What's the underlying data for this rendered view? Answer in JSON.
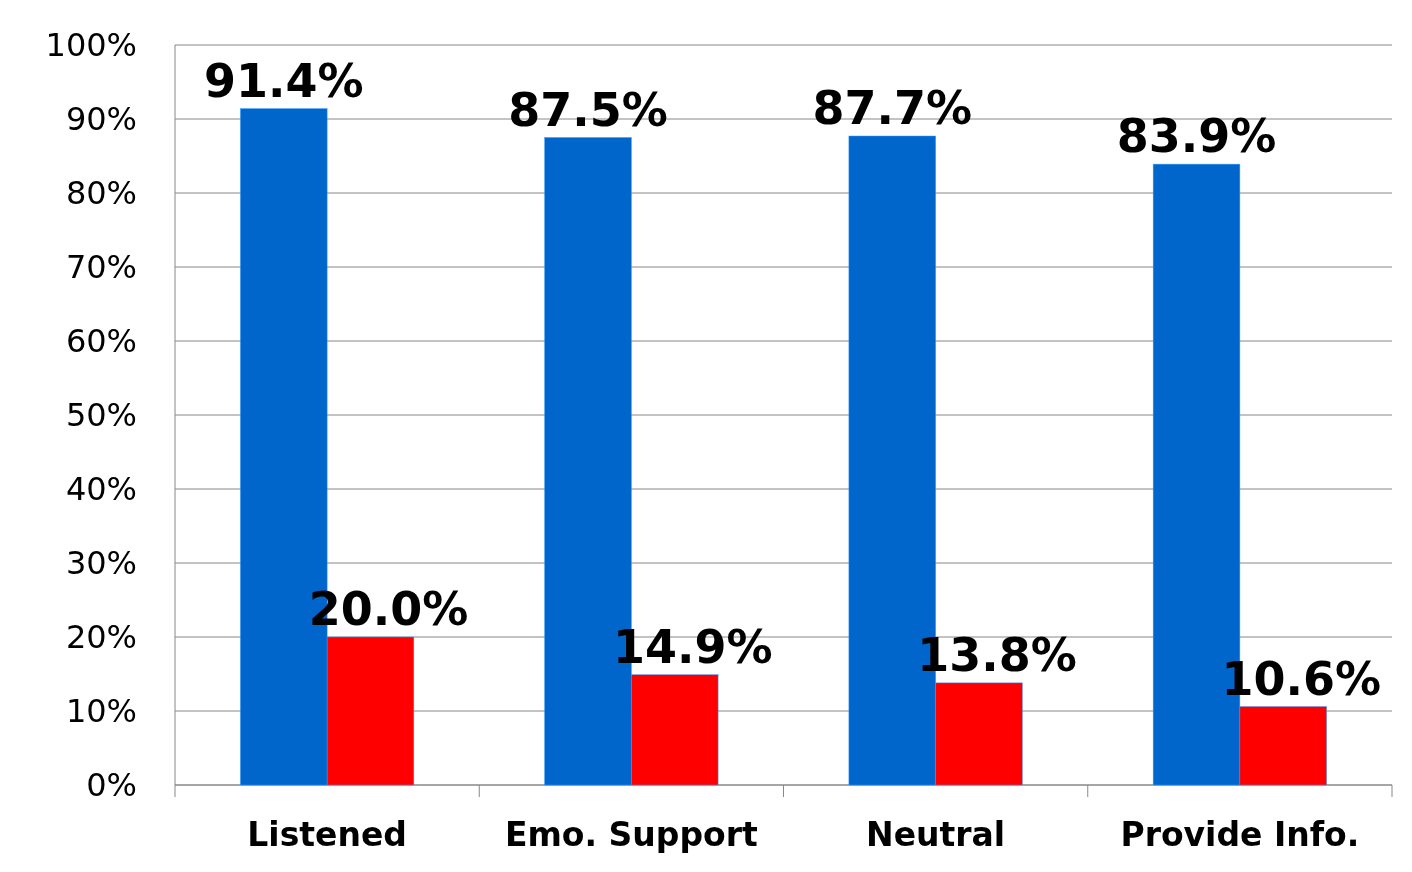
{
  "chart_data": {
    "type": "bar",
    "categories": [
      "Listened",
      "Emo. Support",
      "Neutral",
      "Provide Info."
    ],
    "series": [
      {
        "color": "#0066cc",
        "values": [
          91.4,
          87.5,
          87.7,
          83.9
        ],
        "value_labels": [
          "91.4%",
          "87.5%",
          "87.7%",
          "83.9%"
        ]
      },
      {
        "color": "#ff0000",
        "values": [
          20.0,
          14.9,
          13.8,
          10.6
        ],
        "value_labels": [
          "20.0%",
          "14.9%",
          "13.8%",
          "10.6%"
        ]
      }
    ],
    "ylim": [
      0,
      100
    ],
    "yticks": [
      {
        "value": 0,
        "label": "0%"
      },
      {
        "value": 10,
        "label": "10%"
      },
      {
        "value": 20,
        "label": "20%"
      },
      {
        "value": 30,
        "label": "30%"
      },
      {
        "value": 40,
        "label": "40%"
      },
      {
        "value": 50,
        "label": "50%"
      },
      {
        "value": 60,
        "label": "60%"
      },
      {
        "value": 70,
        "label": "70%"
      },
      {
        "value": 80,
        "label": "80%"
      },
      {
        "value": 90,
        "label": "90%"
      },
      {
        "value": 100,
        "label": "100%"
      }
    ],
    "grid": "y"
  }
}
